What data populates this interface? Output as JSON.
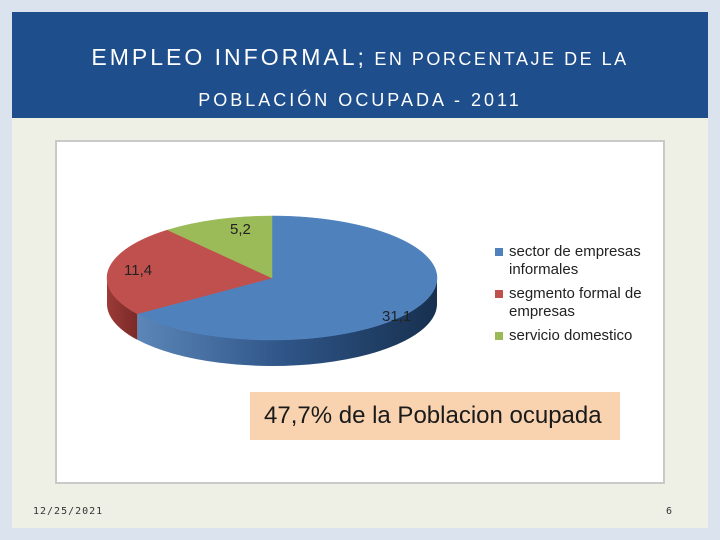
{
  "slide": {
    "title_line1_main": "EMPLEO INFORMAL;",
    "title_line1_rest": " EN PORCENTAJE DE LA",
    "title_line2": "POBLACIÓN OCUPADA - 2011",
    "callout": "47,7% de la Poblacion ocupada",
    "footer_date": "12/25/2021",
    "page_number": "6"
  },
  "chart_data": {
    "type": "pie",
    "title": "",
    "categories": [
      "sector de empresas informales",
      "segmento formal de empresas",
      "servicio domestico"
    ],
    "values": [
      31.1,
      11.4,
      5.2
    ],
    "value_labels": [
      "31,1",
      "11,4",
      "5,2"
    ],
    "colors": [
      "#4f81bd",
      "#c0504d",
      "#9bbb59"
    ],
    "legend_position": "right",
    "style": "3d"
  }
}
